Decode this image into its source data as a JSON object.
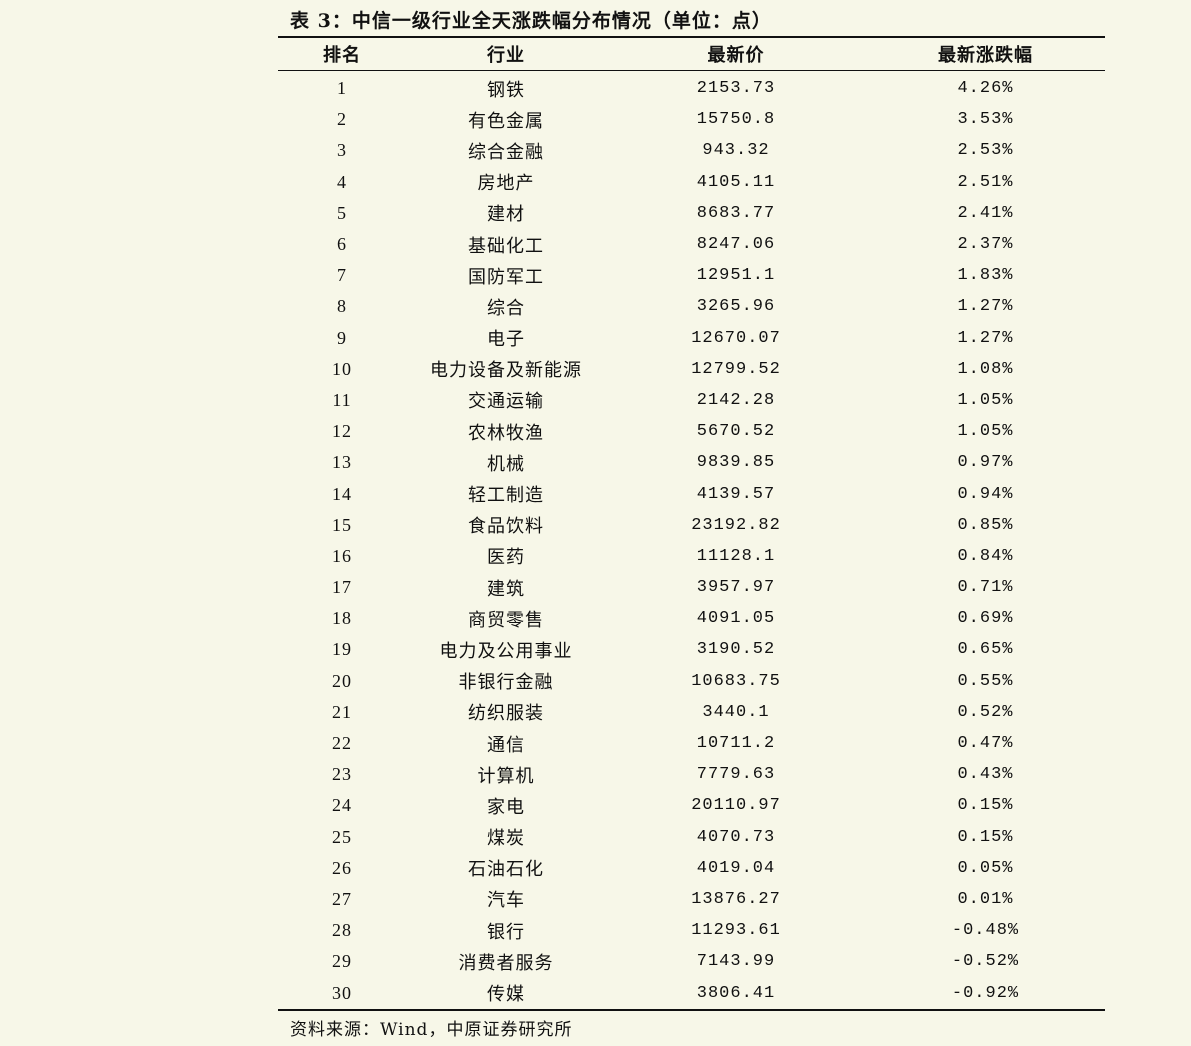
{
  "caption": "表 3：中信一级行业全天涨跌幅分布情况（单位：点）",
  "columns": [
    "排名",
    "行业",
    "最新价",
    "最新涨跌幅"
  ],
  "rows": [
    [
      "1",
      "钢铁",
      "2153.73",
      "4.26%"
    ],
    [
      "2",
      "有色金属",
      "15750.8",
      "3.53%"
    ],
    [
      "3",
      "综合金融",
      "943.32",
      "2.53%"
    ],
    [
      "4",
      "房地产",
      "4105.11",
      "2.51%"
    ],
    [
      "5",
      "建材",
      "8683.77",
      "2.41%"
    ],
    [
      "6",
      "基础化工",
      "8247.06",
      "2.37%"
    ],
    [
      "7",
      "国防军工",
      "12951.1",
      "1.83%"
    ],
    [
      "8",
      "综合",
      "3265.96",
      "1.27%"
    ],
    [
      "9",
      "电子",
      "12670.07",
      "1.27%"
    ],
    [
      "10",
      "电力设备及新能源",
      "12799.52",
      "1.08%"
    ],
    [
      "11",
      "交通运输",
      "2142.28",
      "1.05%"
    ],
    [
      "12",
      "农林牧渔",
      "5670.52",
      "1.05%"
    ],
    [
      "13",
      "机械",
      "9839.85",
      "0.97%"
    ],
    [
      "14",
      "轻工制造",
      "4139.57",
      "0.94%"
    ],
    [
      "15",
      "食品饮料",
      "23192.82",
      "0.85%"
    ],
    [
      "16",
      "医药",
      "11128.1",
      "0.84%"
    ],
    [
      "17",
      "建筑",
      "3957.97",
      "0.71%"
    ],
    [
      "18",
      "商贸零售",
      "4091.05",
      "0.69%"
    ],
    [
      "19",
      "电力及公用事业",
      "3190.52",
      "0.65%"
    ],
    [
      "20",
      "非银行金融",
      "10683.75",
      "0.55%"
    ],
    [
      "21",
      "纺织服装",
      "3440.1",
      "0.52%"
    ],
    [
      "22",
      "通信",
      "10711.2",
      "0.47%"
    ],
    [
      "23",
      "计算机",
      "7779.63",
      "0.43%"
    ],
    [
      "24",
      "家电",
      "20110.97",
      "0.15%"
    ],
    [
      "25",
      "煤炭",
      "4070.73",
      "0.15%"
    ],
    [
      "26",
      "石油石化",
      "4019.04",
      "0.05%"
    ],
    [
      "27",
      "汽车",
      "13876.27",
      "0.01%"
    ],
    [
      "28",
      "银行",
      "11293.61",
      "-0.48%"
    ],
    [
      "29",
      "消费者服务",
      "7143.99",
      "-0.52%"
    ],
    [
      "30",
      "传媒",
      "3806.41",
      "-0.92%"
    ]
  ],
  "source": "资料来源：Wind，中原证券研究所"
}
